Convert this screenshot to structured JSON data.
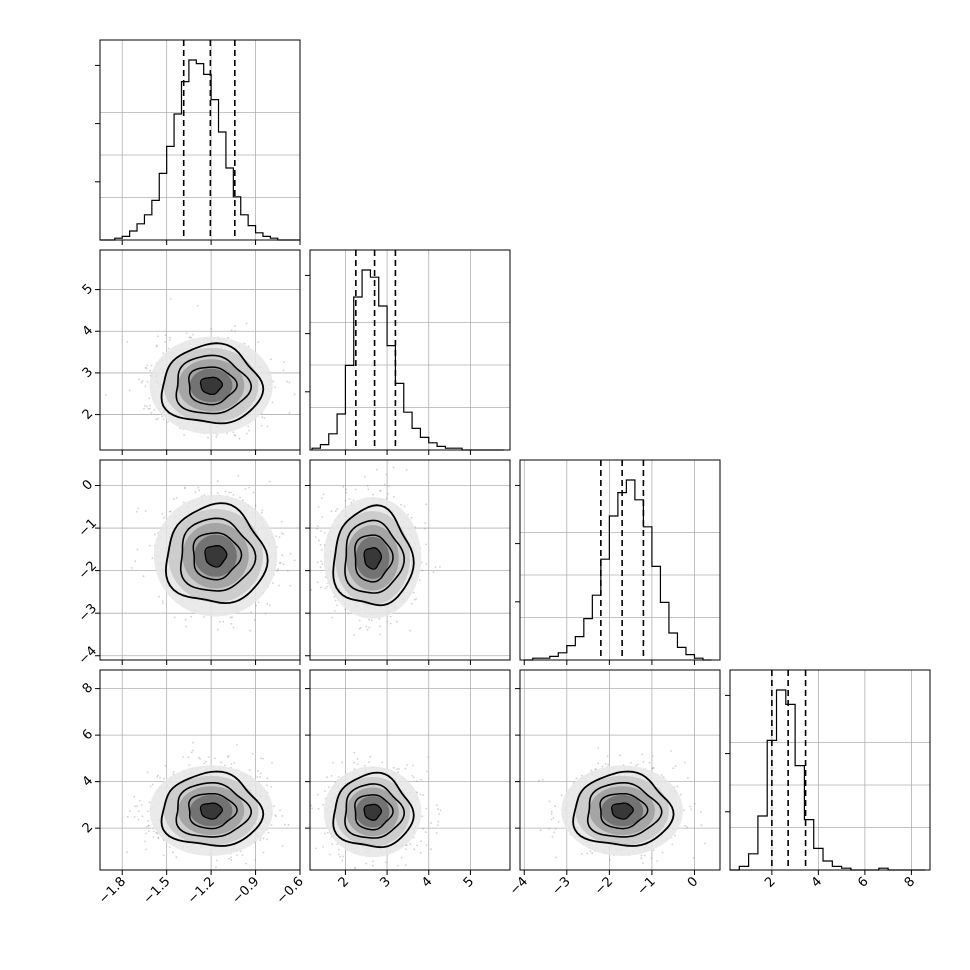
{
  "chart_data": {
    "type": "corner",
    "n_params": 4,
    "params": [
      {
        "range": [
          -1.95,
          -0.6
        ],
        "ticks": [
          "−1.8",
          "−1.5",
          "−1.2",
          "−0.9",
          "−0.6"
        ],
        "tick_values": [
          -1.8,
          -1.5,
          -1.2,
          -0.9,
          -0.6
        ],
        "quantiles": [
          -1.385,
          -1.205,
          -1.04
        ],
        "hist_max": 0.0
      },
      {
        "range": [
          1.15,
          5.95
        ],
        "ticks": [
          "2",
          "3",
          "4",
          "5"
        ],
        "tick_values": [
          2,
          3,
          4,
          5
        ],
        "quantiles": [
          2.25,
          2.7,
          3.2
        ],
        "hist_max": 0.0
      },
      {
        "range": [
          -4.1,
          0.6
        ],
        "ticks": [
          "−4",
          "−3",
          "−2",
          "−1",
          "0"
        ],
        "tick_values": [
          -4,
          -3,
          -2,
          -1,
          0
        ],
        "quantiles": [
          -2.2,
          -1.7,
          -1.2
        ],
        "hist_max": 0.0
      },
      {
        "range": [
          0.2,
          8.8
        ],
        "ticks": [
          "2",
          "4",
          "6",
          "8"
        ],
        "tick_values": [
          2,
          4,
          6,
          8
        ],
        "quantiles": [
          2.0,
          2.7,
          3.45
        ],
        "hist_max": 0.0
      }
    ],
    "histograms": [
      {
        "edges": [
          -1.95,
          -1.9,
          -1.85,
          -1.8,
          -1.75,
          -1.7,
          -1.65,
          -1.6,
          -1.55,
          -1.5,
          -1.45,
          -1.4,
          -1.35,
          -1.3,
          -1.25,
          -1.2,
          -1.15,
          -1.1,
          -1.05,
          -1.0,
          -0.95,
          -0.9,
          -0.85,
          -0.8,
          -0.75,
          -0.7,
          -0.65,
          -0.6
        ],
        "counts": [
          0,
          0,
          1,
          2,
          5,
          9,
          14,
          22,
          37,
          52,
          70,
          88,
          100,
          98,
          92,
          78,
          60,
          40,
          24,
          14,
          8,
          4,
          2,
          1,
          0,
          0,
          0
        ]
      },
      {
        "edges": [
          1.2,
          1.4,
          1.6,
          1.8,
          2.0,
          2.2,
          2.4,
          2.6,
          2.8,
          3.0,
          3.2,
          3.4,
          3.6,
          3.8,
          4.0,
          4.2,
          4.4,
          4.6,
          4.8,
          5.0,
          5.2,
          5.4,
          5.6,
          5.8
        ],
        "counts": [
          1,
          3,
          9,
          20,
          47,
          85,
          100,
          96,
          80,
          58,
          37,
          21,
          12,
          7,
          4,
          2,
          1,
          1,
          0,
          0,
          0,
          0,
          0
        ]
      },
      {
        "edges": [
          -4.0,
          -3.8,
          -3.6,
          -3.4,
          -3.2,
          -3.0,
          -2.8,
          -2.6,
          -2.4,
          -2.2,
          -2.0,
          -1.8,
          -1.6,
          -1.4,
          -1.2,
          -1.0,
          -0.8,
          -0.6,
          -0.4,
          -0.2,
          0.0,
          0.2,
          0.4
        ],
        "counts": [
          0,
          1,
          1,
          2,
          4,
          8,
          13,
          23,
          36,
          56,
          80,
          93,
          100,
          89,
          74,
          52,
          32,
          15,
          7,
          3,
          1,
          0
        ]
      },
      {
        "edges": [
          0.2,
          0.6,
          1.0,
          1.4,
          1.8,
          2.2,
          2.6,
          3.0,
          3.4,
          3.8,
          4.2,
          4.6,
          5.0,
          5.4,
          5.8,
          6.2,
          6.6,
          7.0,
          7.4,
          7.8,
          8.2,
          8.6
        ],
        "counts": [
          0,
          2,
          9,
          30,
          72,
          100,
          92,
          58,
          28,
          12,
          5,
          2,
          1,
          0,
          0,
          0,
          1,
          0,
          0,
          0,
          0
        ]
      }
    ],
    "joint": [
      {
        "x": 0,
        "y": 1,
        "center": [
          -1.2,
          2.7
        ],
        "sd": [
          0.16,
          0.45
        ]
      },
      {
        "x": 0,
        "y": 2,
        "center": [
          -1.17,
          -1.65
        ],
        "sd": [
          0.16,
          0.55
        ]
      },
      {
        "x": 1,
        "y": 2,
        "center": [
          2.65,
          -1.7
        ],
        "sd": [
          0.45,
          0.55
        ]
      },
      {
        "x": 0,
        "y": 3,
        "center": [
          -1.2,
          2.75
        ],
        "sd": [
          0.16,
          0.75
        ]
      },
      {
        "x": 1,
        "y": 3,
        "center": [
          2.65,
          2.7
        ],
        "sd": [
          0.45,
          0.75
        ]
      },
      {
        "x": 2,
        "y": 3,
        "center": [
          -1.7,
          2.75
        ],
        "sd": [
          0.55,
          0.75
        ]
      }
    ],
    "y_tick_labels": {
      "1": {
        "values": [
          2,
          3,
          4,
          5
        ],
        "labels": [
          "2",
          "3",
          "4",
          "5"
        ]
      },
      "2": {
        "values": [
          -4,
          -3,
          -2,
          -1,
          0
        ],
        "labels": [
          "−4",
          "−3",
          "−2",
          "−1",
          "0"
        ]
      },
      "3": {
        "values": [
          2,
          4,
          6,
          8
        ],
        "labels": [
          "2",
          "4",
          "6",
          "8"
        ]
      }
    },
    "grid": true,
    "colors": {
      "line": "#000000",
      "scatter": "#9a9a9a",
      "grid": "#b0b0b0"
    }
  }
}
